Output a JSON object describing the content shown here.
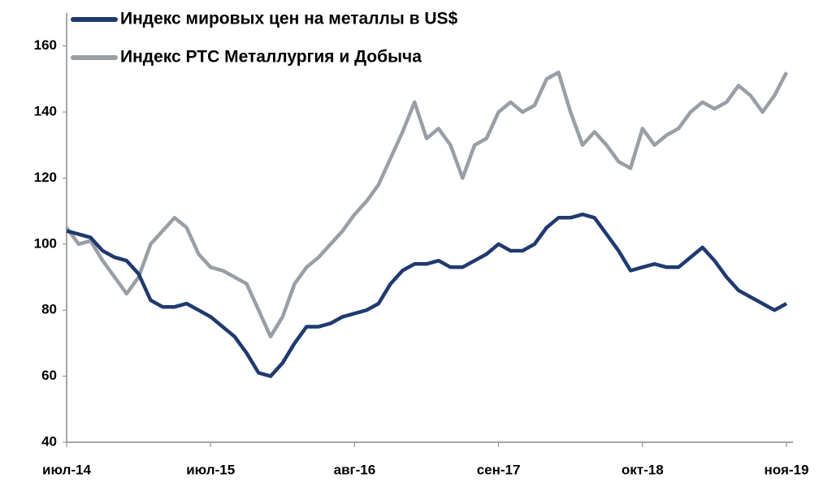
{
  "chart_data": {
    "type": "line",
    "categories": [
      "июл-14",
      null,
      null,
      null,
      null,
      null,
      null,
      null,
      null,
      null,
      null,
      null,
      "июл-15",
      null,
      null,
      null,
      null,
      null,
      null,
      null,
      null,
      null,
      null,
      null,
      "авг-16",
      null,
      null,
      null,
      null,
      null,
      null,
      null,
      null,
      null,
      null,
      null,
      "сен-17",
      null,
      null,
      null,
      null,
      null,
      null,
      null,
      null,
      null,
      null,
      null,
      "окт-18",
      null,
      null,
      null,
      null,
      null,
      null,
      null,
      null,
      null,
      null,
      null,
      "ноя-19"
    ],
    "series": [
      {
        "name": "Индекс мировых цен на металлы в US$",
        "color": "#1f3a6e",
        "values": [
          104,
          103,
          102,
          98,
          96,
          95,
          91,
          83,
          81,
          81,
          82,
          80,
          78,
          75,
          72,
          67,
          61,
          60,
          64,
          70,
          75,
          75,
          76,
          78,
          79,
          80,
          82,
          88,
          92,
          94,
          94,
          95,
          93,
          93,
          95,
          97,
          100,
          98,
          98,
          100,
          105,
          108,
          108,
          109,
          108,
          103,
          98,
          92,
          93,
          94,
          93,
          93,
          96,
          99,
          95,
          90,
          86,
          84,
          82,
          80,
          82
        ]
      },
      {
        "name": "Индекс РТС Металлургия и Добыча",
        "color": "#9a9ea6",
        "values": [
          105,
          100,
          101,
          95,
          90,
          85,
          90,
          100,
          104,
          108,
          105,
          97,
          93,
          92,
          90,
          88,
          80,
          72,
          78,
          88,
          93,
          96,
          100,
          104,
          109,
          113,
          118,
          126,
          134,
          143,
          132,
          135,
          130,
          120,
          130,
          132,
          140,
          143,
          140,
          142,
          150,
          152,
          140,
          130,
          134,
          130,
          125,
          123,
          135,
          130,
          133,
          135,
          140,
          143,
          141,
          143,
          148,
          145,
          140,
          145,
          152
        ]
      }
    ],
    "ylim": [
      40,
      170
    ],
    "yticks": [
      40,
      60,
      80,
      100,
      120,
      140,
      160
    ],
    "grid": false,
    "legend": "top-left"
  }
}
